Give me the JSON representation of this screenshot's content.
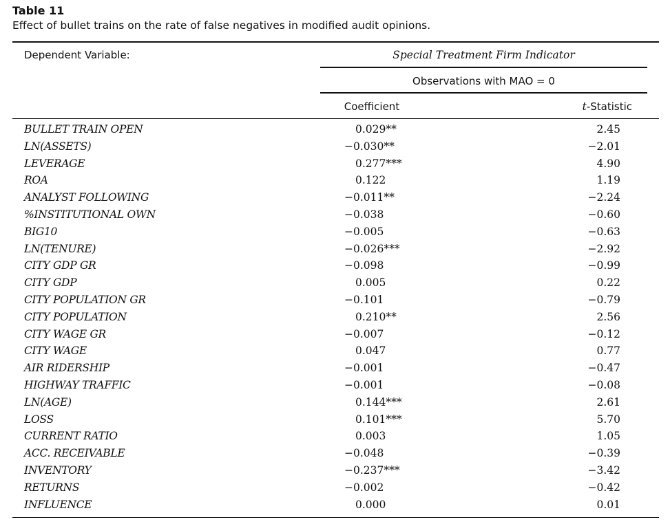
{
  "table": {
    "label": "Table 11",
    "caption": "Effect of bullet trains on the rate of false negatives in modified audit opinions."
  },
  "header": {
    "dependent_label": "Dependent Variable:",
    "dependent_value": "Special Treatment Firm Indicator",
    "sample": "Observations with MAO = 0",
    "col_coef": "Coefficient",
    "col_t_prefix": "t",
    "col_t_suffix": "-Statistic"
  },
  "rows": [
    {
      "variable": "BULLET TRAIN OPEN",
      "coef": "0.029**",
      "t": "2.45"
    },
    {
      "variable": "LN(ASSETS)",
      "coef": "−0.030**",
      "t": "−2.01"
    },
    {
      "variable": "LEVERAGE",
      "coef": "0.277***",
      "t": "4.90"
    },
    {
      "variable": "ROA",
      "coef": "0.122",
      "t": "1.19"
    },
    {
      "variable": "ANALYST FOLLOWING",
      "coef": "−0.011**",
      "t": "−2.24"
    },
    {
      "variable": "%INSTITUTIONAL OWN",
      "coef": "−0.038",
      "t": "−0.60"
    },
    {
      "variable": "BIG10",
      "coef": "−0.005",
      "t": "−0.63"
    },
    {
      "variable": "LN(TENURE)",
      "coef": "−0.026***",
      "t": "−2.92"
    },
    {
      "variable": "CITY GDP GR",
      "coef": "−0.098",
      "t": "−0.99"
    },
    {
      "variable": "CITY GDP",
      "coef": "0.005",
      "t": "0.22"
    },
    {
      "variable": "CITY POPULATION GR",
      "coef": "−0.101",
      "t": "−0.79"
    },
    {
      "variable": "CITY POPULATION",
      "coef": "0.210**",
      "t": "2.56"
    },
    {
      "variable": "CITY WAGE GR",
      "coef": "−0.007",
      "t": "−0.12"
    },
    {
      "variable": "CITY WAGE",
      "coef": "0.047",
      "t": "0.77"
    },
    {
      "variable": "AIR RIDERSHIP",
      "coef": "−0.001",
      "t": "−0.47"
    },
    {
      "variable": "HIGHWAY TRAFFIC",
      "coef": "−0.001",
      "t": "−0.08"
    },
    {
      "variable": "LN(AGE)",
      "coef": "0.144***",
      "t": "2.61"
    },
    {
      "variable": "LOSS",
      "coef": "0.101***",
      "t": "5.70"
    },
    {
      "variable": "CURRENT RATIO",
      "coef": "0.003",
      "t": "1.05"
    },
    {
      "variable": "ACC. RECEIVABLE",
      "coef": "−0.048",
      "t": "−0.39"
    },
    {
      "variable": "INVENTORY",
      "coef": "−0.237***",
      "t": "−3.42"
    },
    {
      "variable": "RETURNS",
      "coef": "−0.002",
      "t": "−0.42"
    },
    {
      "variable": "INFLUENCE",
      "coef": "0.000",
      "t": "0.01"
    }
  ]
}
